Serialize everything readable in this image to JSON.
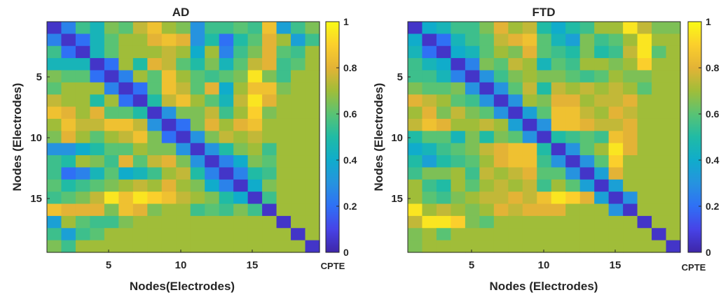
{
  "chart_data": [
    {
      "type": "heatmap",
      "title": "AD",
      "xlabel": "Nodes(Electrodes)",
      "ylabel": "Nodes (Electrodes)",
      "n": 19,
      "xticks": [
        "5",
        "10",
        "15"
      ],
      "yticks": [
        "5",
        "10",
        "15"
      ],
      "colorbar": {
        "label": "CPTE",
        "ticks": [
          "0",
          "0.2",
          "0.4",
          "0.6",
          "0.8",
          "1"
        ],
        "range": [
          0,
          1
        ]
      },
      "upper_values": [
        [
          0.25,
          0.55,
          0.45,
          0.65,
          0.6,
          0.75,
          0.85,
          0.7,
          0.65,
          0.3,
          0.55,
          0.55,
          0.6,
          0.55,
          0.85,
          0.35,
          0.55,
          0.65
        ],
        [
          0.2,
          0.45,
          0.6,
          0.7,
          0.7,
          0.8,
          0.85,
          0.8,
          0.3,
          0.5,
          0.2,
          0.5,
          0.6,
          0.8,
          0.7,
          0.35,
          0.55
        ],
        [
          0.45,
          0.6,
          0.7,
          0.7,
          0.7,
          0.75,
          0.7,
          0.4,
          0.7,
          0.25,
          0.55,
          0.65,
          0.8,
          0.6,
          0.55
        ],
        [
          0.2,
          0.7,
          0.5,
          0.8,
          0.75,
          0.6,
          0.5,
          0.65,
          0.45,
          0.6,
          0.75,
          0.8,
          0.55,
          0.6
        ],
        [
          0.25,
          0.7,
          0.6,
          0.85,
          0.7,
          0.6,
          0.55,
          0.6,
          0.65,
          0.95,
          0.65,
          0.55
        ],
        [
          0.2,
          0.6,
          0.85,
          0.75,
          0.6,
          0.8,
          0.4,
          0.7,
          0.85,
          0.85,
          0.65
        ],
        [
          0.5,
          0.75,
          0.85,
          0.7,
          0.6,
          0.45,
          0.75,
          0.95,
          0.8
        ],
        [
          0.3,
          0.65,
          0.65,
          0.75,
          0.55,
          0.7,
          0.9,
          0.65
        ],
        [
          0.2,
          0.65,
          0.8,
          0.7,
          0.8,
          0.85,
          0.7
        ],
        [
          0.3,
          0.65,
          0.75,
          0.7,
          0.75,
          0.7
        ],
        [
          0.3,
          0.5,
          0.65,
          0.7,
          0.55
        ],
        [
          0.25,
          0.4,
          0.65,
          0.6
        ],
        [
          0.25,
          0.5,
          0.55
        ],
        [
          0.4,
          0.65
        ],
        [
          0.55
        ],
        [],
        [],
        []
      ]
    },
    {
      "type": "heatmap",
      "title": "FTD",
      "xlabel": "Nodes (Electrodes)",
      "ylabel": "Nodes (Electrodes)",
      "n": 19,
      "xticks": [
        "5",
        "10",
        "15"
      ],
      "yticks": [
        "5",
        "10",
        "15"
      ],
      "colorbar": {
        "label": "CPTE",
        "ticks": [
          "0",
          "0.2",
          "0.4",
          "0.6",
          "0.8",
          "1"
        ],
        "range": [
          0,
          1
        ]
      },
      "upper_values": [
        [
          0.4,
          0.45,
          0.55,
          0.55,
          0.65,
          0.8,
          0.7,
          0.75,
          0.5,
          0.4,
          0.5,
          0.55,
          0.7,
          0.7,
          0.95,
          0.75,
          0.65,
          0.65
        ],
        [
          0.2,
          0.45,
          0.55,
          0.6,
          0.75,
          0.8,
          0.85,
          0.6,
          0.45,
          0.35,
          0.65,
          0.55,
          0.6,
          0.7,
          0.95,
          0.7,
          0.7
        ],
        [
          0.4,
          0.45,
          0.6,
          0.7,
          0.65,
          0.8,
          0.6,
          0.55,
          0.5,
          0.65,
          0.5,
          0.55,
          0.75,
          0.95,
          0.6
        ],
        [
          0.25,
          0.65,
          0.6,
          0.75,
          0.7,
          0.45,
          0.6,
          0.55,
          0.7,
          0.7,
          0.65,
          0.7,
          0.9
        ],
        [
          0.3,
          0.55,
          0.65,
          0.7,
          0.65,
          0.65,
          0.6,
          0.55,
          0.6,
          0.7,
          0.65,
          0.65
        ],
        [
          0.3,
          0.6,
          0.75,
          0.5,
          0.75,
          0.7,
          0.75,
          0.7,
          0.75,
          0.7,
          0.6
        ],
        [
          0.3,
          0.7,
          0.65,
          0.8,
          0.8,
          0.7,
          0.75,
          0.75,
          0.8
        ],
        [
          0.35,
          0.6,
          0.85,
          0.85,
          0.75,
          0.7,
          0.8,
          0.75
        ],
        [
          0.3,
          0.85,
          0.85,
          0.8,
          0.75,
          0.75,
          0.8
        ],
        [
          0.5,
          0.55,
          0.6,
          0.55,
          0.85,
          0.8
        ],
        [
          0.3,
          0.6,
          0.7,
          0.95,
          0.8
        ],
        [
          0.3,
          0.6,
          0.9,
          0.7
        ],
        [
          0.35,
          0.8,
          0.7
        ],
        [
          0.35,
          0.7
        ],
        [
          0.3
        ],
        [],
        [],
        []
      ]
    }
  ]
}
